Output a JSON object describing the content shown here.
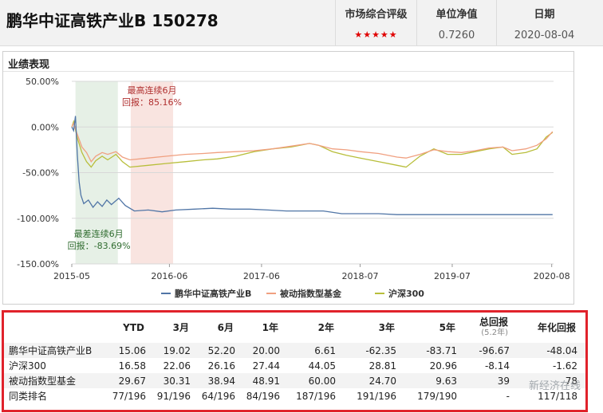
{
  "header": {
    "fund_title": "鹏华中证高铁产业B 150278",
    "rating_label": "市场综合评级",
    "rating_stars": "★★★★★",
    "nav_label": "单位净值",
    "nav_value": "0.7260",
    "date_label": "日期",
    "date_value": "2020-08-04"
  },
  "panel": {
    "title": "业绩表现"
  },
  "chart_data": {
    "type": "line",
    "y_ticks": [
      "50.00%",
      "0.00%",
      "-50.00%",
      "-100.00%",
      "-150.00%"
    ],
    "ylim": [
      -150,
      50
    ],
    "x_ticks": [
      "2015-05",
      "2016-06",
      "2017-06",
      "2018-07",
      "2019-07",
      "2020-08"
    ],
    "xlim": [
      2015.37,
      2020.6
    ],
    "grid": true,
    "legend_position": "bottom",
    "annotations": {
      "best": {
        "line1": "最高连续6月",
        "line2": "回报：85.16%",
        "color": "#b03030",
        "x_start": 2016.01,
        "x_end": 2016.47
      },
      "worst": {
        "line1": "最差连续6月",
        "line2": "回报：-83.69%",
        "color": "#2e6b2e",
        "x_start": 2015.41,
        "x_end": 2015.87
      }
    },
    "series": [
      {
        "name": "鹏华中证高铁产业B",
        "color": "#5075a6",
        "points": [
          [
            2015.37,
            0
          ],
          [
            2015.39,
            -4
          ],
          [
            2015.41,
            12
          ],
          [
            2015.43,
            -30
          ],
          [
            2015.45,
            -60
          ],
          [
            2015.47,
            -75
          ],
          [
            2015.5,
            -84
          ],
          [
            2015.55,
            -80
          ],
          [
            2015.6,
            -88
          ],
          [
            2015.65,
            -82
          ],
          [
            2015.7,
            -87
          ],
          [
            2015.75,
            -80
          ],
          [
            2015.8,
            -85
          ],
          [
            2015.88,
            -78
          ],
          [
            2015.95,
            -86
          ],
          [
            2016.05,
            -92
          ],
          [
            2016.2,
            -91
          ],
          [
            2016.35,
            -93
          ],
          [
            2016.5,
            -91
          ],
          [
            2016.7,
            -90
          ],
          [
            2016.9,
            -89
          ],
          [
            2017.1,
            -90
          ],
          [
            2017.3,
            -90
          ],
          [
            2017.5,
            -91
          ],
          [
            2017.7,
            -92
          ],
          [
            2017.9,
            -92
          ],
          [
            2018.1,
            -92
          ],
          [
            2018.3,
            -95
          ],
          [
            2018.5,
            -95
          ],
          [
            2018.7,
            -95
          ],
          [
            2018.9,
            -96
          ],
          [
            2019.1,
            -96
          ],
          [
            2019.3,
            -96
          ],
          [
            2019.5,
            -96
          ],
          [
            2019.7,
            -96
          ],
          [
            2019.9,
            -96
          ],
          [
            2020.1,
            -96
          ],
          [
            2020.3,
            -96
          ],
          [
            2020.5,
            -96
          ],
          [
            2020.59,
            -96
          ]
        ]
      },
      {
        "name": "被动指数型基金",
        "color": "#f0a080",
        "points": [
          [
            2015.37,
            0
          ],
          [
            2015.39,
            4
          ],
          [
            2015.43,
            -8
          ],
          [
            2015.48,
            -22
          ],
          [
            2015.53,
            -28
          ],
          [
            2015.58,
            -38
          ],
          [
            2015.63,
            -32
          ],
          [
            2015.7,
            -28
          ],
          [
            2015.76,
            -30
          ],
          [
            2015.85,
            -27
          ],
          [
            2015.92,
            -33
          ],
          [
            2016.0,
            -36
          ],
          [
            2016.2,
            -34
          ],
          [
            2016.4,
            -32
          ],
          [
            2016.6,
            -30
          ],
          [
            2016.8,
            -29
          ],
          [
            2016.95,
            -28
          ],
          [
            2017.15,
            -27
          ],
          [
            2017.35,
            -26
          ],
          [
            2017.55,
            -24
          ],
          [
            2017.75,
            -21
          ],
          [
            2017.95,
            -18
          ],
          [
            2018.05,
            -20
          ],
          [
            2018.2,
            -24
          ],
          [
            2018.35,
            -25
          ],
          [
            2018.5,
            -27
          ],
          [
            2018.7,
            -29
          ],
          [
            2018.9,
            -33
          ],
          [
            2019.0,
            -34
          ],
          [
            2019.15,
            -30
          ],
          [
            2019.3,
            -25
          ],
          [
            2019.45,
            -27
          ],
          [
            2019.6,
            -28
          ],
          [
            2019.75,
            -26
          ],
          [
            2019.9,
            -23
          ],
          [
            2020.05,
            -22
          ],
          [
            2020.15,
            -26
          ],
          [
            2020.3,
            -24
          ],
          [
            2020.42,
            -20
          ],
          [
            2020.52,
            -13
          ],
          [
            2020.59,
            -5
          ]
        ]
      },
      {
        "name": "沪深300",
        "color": "#b8be3a",
        "points": [
          [
            2015.37,
            0
          ],
          [
            2015.39,
            6
          ],
          [
            2015.43,
            -12
          ],
          [
            2015.48,
            -28
          ],
          [
            2015.53,
            -38
          ],
          [
            2015.58,
            -44
          ],
          [
            2015.63,
            -37
          ],
          [
            2015.7,
            -32
          ],
          [
            2015.76,
            -36
          ],
          [
            2015.85,
            -30
          ],
          [
            2015.92,
            -38
          ],
          [
            2016.0,
            -44
          ],
          [
            2016.2,
            -42
          ],
          [
            2016.4,
            -40
          ],
          [
            2016.6,
            -38
          ],
          [
            2016.8,
            -36
          ],
          [
            2016.95,
            -35
          ],
          [
            2017.15,
            -32
          ],
          [
            2017.35,
            -27
          ],
          [
            2017.55,
            -24
          ],
          [
            2017.75,
            -22
          ],
          [
            2017.95,
            -18
          ],
          [
            2018.05,
            -20
          ],
          [
            2018.2,
            -27
          ],
          [
            2018.35,
            -31
          ],
          [
            2018.5,
            -34
          ],
          [
            2018.7,
            -38
          ],
          [
            2018.9,
            -42
          ],
          [
            2019.0,
            -44
          ],
          [
            2019.15,
            -32
          ],
          [
            2019.3,
            -24
          ],
          [
            2019.45,
            -30
          ],
          [
            2019.6,
            -30
          ],
          [
            2019.75,
            -27
          ],
          [
            2019.9,
            -24
          ],
          [
            2020.05,
            -22
          ],
          [
            2020.15,
            -30
          ],
          [
            2020.3,
            -28
          ],
          [
            2020.42,
            -24
          ],
          [
            2020.52,
            -11
          ],
          [
            2020.59,
            -6
          ]
        ]
      }
    ]
  },
  "table": {
    "headers": [
      "",
      "YTD",
      "3月",
      "6月",
      "1年",
      "2年",
      "3年",
      "5年",
      "总回报",
      "年化回报"
    ],
    "total_sub": "(5.2年)",
    "rows": [
      {
        "name": "鹏华中证高铁产业B",
        "values": [
          "15.06",
          "19.02",
          "52.20",
          "20.00",
          "6.61",
          "-62.35",
          "-83.71",
          "-96.67",
          "-48.04"
        ]
      },
      {
        "name": "沪深300",
        "values": [
          "16.58",
          "22.06",
          "26.16",
          "27.44",
          "44.05",
          "28.81",
          "20.96",
          "-8.14",
          "-1.62"
        ]
      },
      {
        "name": "被动指数型基金",
        "values": [
          "29.67",
          "30.31",
          "38.94",
          "48.91",
          "60.00",
          "24.70",
          "9.63",
          "39",
          "78"
        ]
      },
      {
        "name": "同类排名",
        "values": [
          "77/196",
          "91/196",
          "64/196",
          "84/196",
          "187/196",
          "191/196",
          "179/190",
          "-",
          "117/118"
        ]
      }
    ]
  },
  "watermark": "新经济在线"
}
